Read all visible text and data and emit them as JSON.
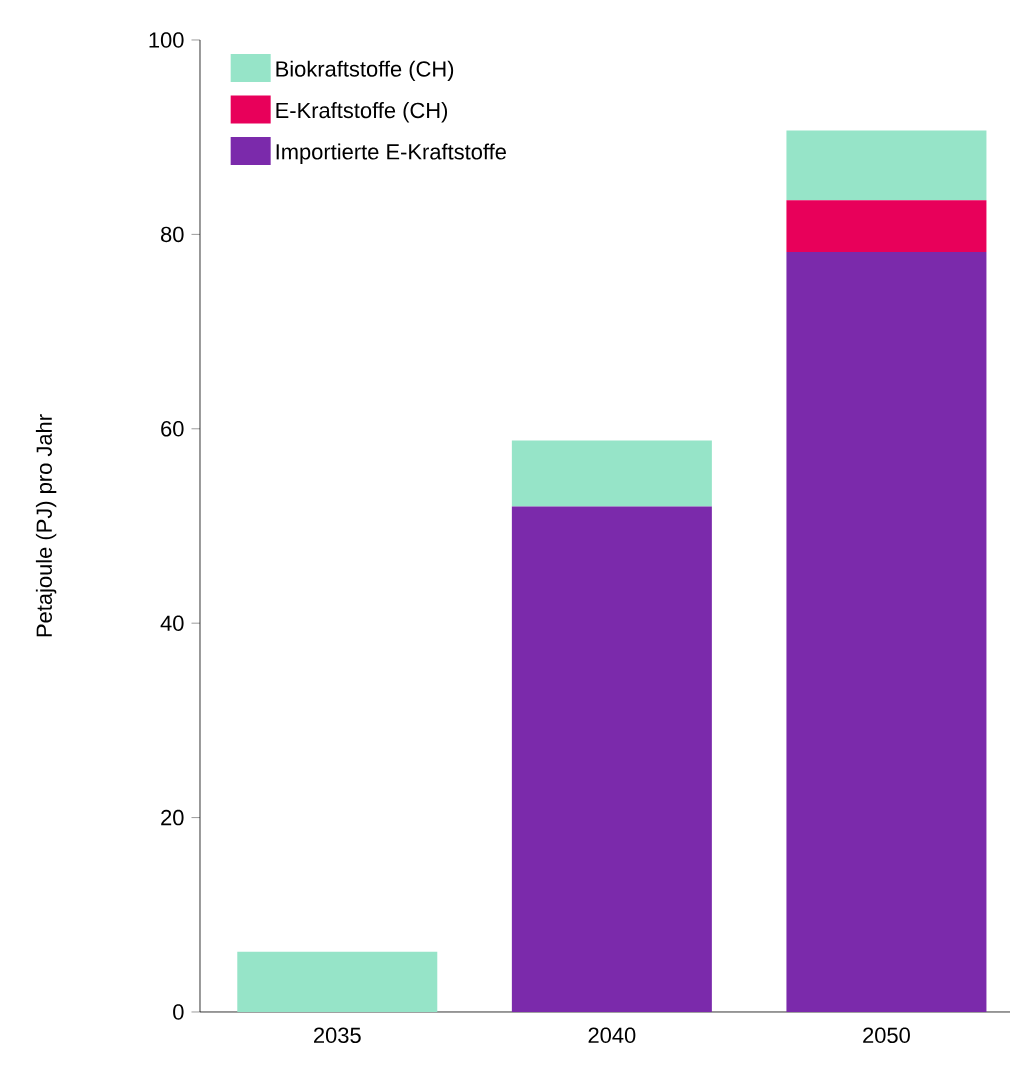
{
  "chart_data": {
    "type": "bar",
    "stacked": true,
    "ylabel": "Petajoule (PJ) pro Jahr",
    "categories": [
      "2035",
      "2040",
      "2050"
    ],
    "series": [
      {
        "name": "Importierte E-Kraftstoffe",
        "color": "#7b2aab",
        "values": [
          0,
          52,
          78.2
        ]
      },
      {
        "name": "E-Kraftstoffe (CH)",
        "color": "#e8005a",
        "values": [
          0,
          0,
          5.3
        ]
      },
      {
        "name": "Biokraftstoffe (CH)",
        "color": "#96e4c8",
        "values": [
          6.2,
          6.8,
          7.2
        ]
      }
    ],
    "ylim": [
      0,
      100
    ],
    "yticks": [
      0,
      20,
      40,
      60,
      80,
      100
    ],
    "grid": false,
    "legend": "top left"
  }
}
